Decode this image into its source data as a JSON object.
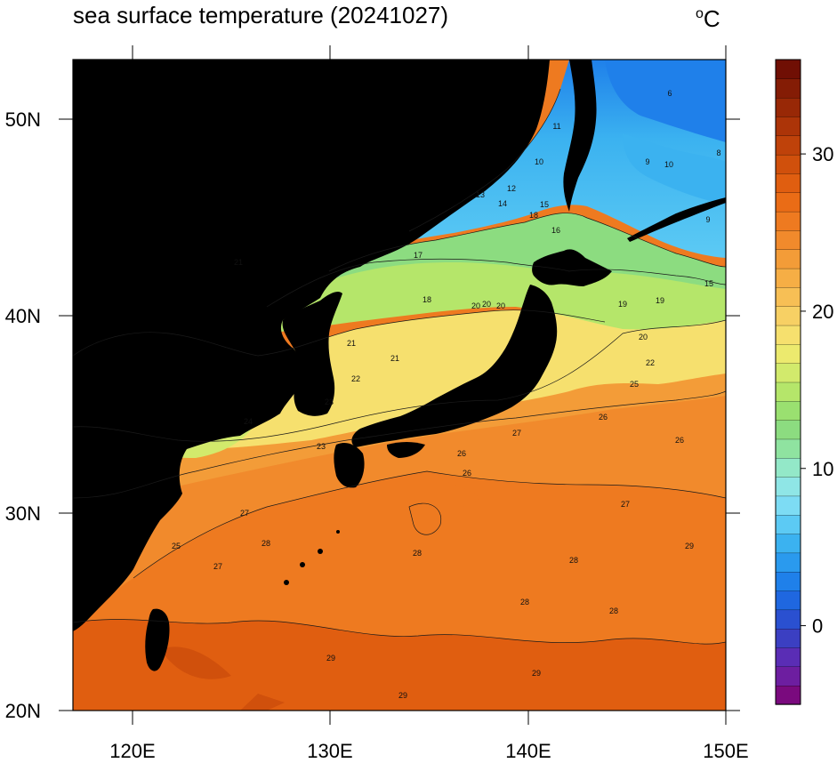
{
  "chart_data": {
    "type": "heatmap",
    "title": "sea surface temperature (20241027)",
    "units": "°C",
    "units_base": "C",
    "units_sup": "o",
    "lon_ticks": [
      "120E",
      "130E",
      "140E",
      "150E"
    ],
    "lat_ticks": [
      "50N",
      "40N",
      "30N",
      "20N"
    ],
    "lon_range": [
      117,
      150
    ],
    "lat_range": [
      20,
      53
    ],
    "colorbar": {
      "range": [
        -5,
        36
      ],
      "tick_labels": [
        "30",
        "20",
        "10",
        "0"
      ],
      "tick_values": [
        30,
        20,
        10,
        0
      ],
      "palette": [
        "#7a0a7e",
        "#6d1ea0",
        "#5a2db5",
        "#3b3fc2",
        "#2a50d0",
        "#1f67e0",
        "#1f80ea",
        "#2a9aee",
        "#3bb2f0",
        "#5ccaf4",
        "#7ddcf4",
        "#8fe6e6",
        "#93e8c8",
        "#8fe3a0",
        "#8cdc80",
        "#9ae070",
        "#b5e66a",
        "#d2ea6c",
        "#ecea6e",
        "#f6e06e",
        "#f7d064",
        "#f7bf55",
        "#f6ae45",
        "#f39c38",
        "#f18a2c",
        "#ee7a20",
        "#ea6c16",
        "#e05e10",
        "#d0500c",
        "#bf420a",
        "#ac3408",
        "#982806",
        "#841c05",
        "#700f04"
      ]
    },
    "contour_labels": [
      "6",
      "8",
      "9",
      "9",
      "10",
      "10",
      "11",
      "12",
      "13",
      "14",
      "15",
      "15",
      "16",
      "17",
      "18",
      "18",
      "19",
      "19",
      "20",
      "20",
      "20",
      "20",
      "21",
      "21",
      "21",
      "22",
      "22",
      "23",
      "23",
      "24",
      "25",
      "25",
      "26",
      "26",
      "26",
      "26",
      "27",
      "27",
      "27",
      "27",
      "28",
      "28",
      "28",
      "28",
      "28",
      "29",
      "29",
      "29",
      "29"
    ]
  },
  "colors": {
    "land": "#000000",
    "background": "#ffffff",
    "contour": "#1a1a1a"
  }
}
